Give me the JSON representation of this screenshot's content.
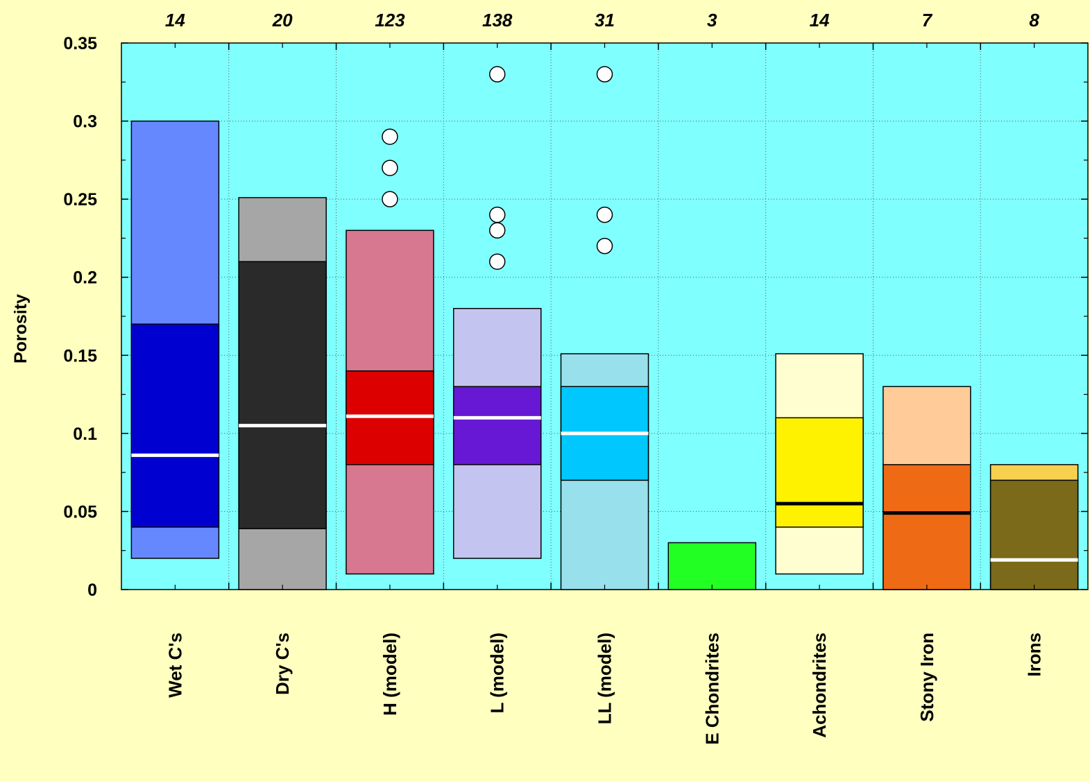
{
  "chart_data": {
    "type": "box",
    "title": "",
    "xlabel": "",
    "ylabel": "Porosity",
    "ylim": [
      0,
      0.35
    ],
    "yticks": [
      0,
      0.05,
      0.1,
      0.15,
      0.2,
      0.25,
      0.3,
      0.35
    ],
    "ytick_labels": [
      "0",
      "0.05",
      "0.1",
      "0.15",
      "0.2",
      "0.25",
      "0.3",
      "0.35"
    ],
    "grid": true,
    "plot_background": "#80ffff",
    "page_background": "#ffffc0",
    "categories": [
      "Wet C's",
      "Dry C's",
      "H (model)",
      "L (model)",
      "LL (model)",
      "E Chondrites",
      "Achondrites",
      "Stony Iron",
      "Irons"
    ],
    "counts": [
      "14",
      "20",
      "123",
      "138",
      "31",
      "3",
      "14",
      "7",
      "8"
    ],
    "boxes": [
      {
        "min": 0.02,
        "q1": 0.04,
        "median": 0.086,
        "q3": 0.17,
        "max": 0.3,
        "outer_color": "#6688ff",
        "inner_color": "#0000d0",
        "median_color": "#ffffff",
        "outliers": []
      },
      {
        "min": 0.0,
        "q1": 0.039,
        "median": 0.105,
        "q3": 0.21,
        "max": 0.251,
        "outer_color": "#a6a6a6",
        "inner_color": "#2a2a2a",
        "median_color": "#ffffff",
        "outliers": []
      },
      {
        "min": 0.01,
        "q1": 0.08,
        "median": 0.111,
        "q3": 0.14,
        "max": 0.23,
        "outer_color": "#d87890",
        "inner_color": "#dd0000",
        "median_color": "#ffffff",
        "outliers": [
          0.25,
          0.27,
          0.29
        ]
      },
      {
        "min": 0.02,
        "q1": 0.08,
        "median": 0.11,
        "q3": 0.13,
        "max": 0.18,
        "outer_color": "#c4c4f0",
        "inner_color": "#6618d4",
        "median_color": "#ffffff",
        "outliers": [
          0.21,
          0.23,
          0.24,
          0.33
        ]
      },
      {
        "min": 0.0,
        "q1": 0.07,
        "median": 0.1,
        "q3": 0.13,
        "max": 0.151,
        "outer_color": "#98e0ec",
        "inner_color": "#00c8ff",
        "median_color": "#ffffff",
        "outliers": [
          0.22,
          0.24,
          0.33
        ]
      },
      {
        "min": 0.0,
        "q1": 0.0,
        "median": 0.0,
        "q3": 0.0,
        "max": 0.03,
        "outer_color": "#22ff22",
        "inner_color": "#22ff22",
        "median_color": "#22ff22",
        "outliers": []
      },
      {
        "min": 0.01,
        "q1": 0.04,
        "median": 0.055,
        "q3": 0.11,
        "max": 0.151,
        "outer_color": "#fffed0",
        "inner_color": "#fff200",
        "median_color": "#000000",
        "outliers": []
      },
      {
        "min": 0.0,
        "q1": 0.0,
        "median": 0.049,
        "q3": 0.08,
        "max": 0.13,
        "outer_color": "#ffcc99",
        "inner_color": "#ee6a14",
        "median_color": "#000000",
        "outliers": []
      },
      {
        "min": 0.0,
        "q1": 0.0,
        "median": 0.019,
        "q3": 0.07,
        "max": 0.08,
        "outer_color": "#f8d050",
        "inner_color": "#7a6a1a",
        "median_color": "#ffffff",
        "outliers": []
      }
    ]
  }
}
